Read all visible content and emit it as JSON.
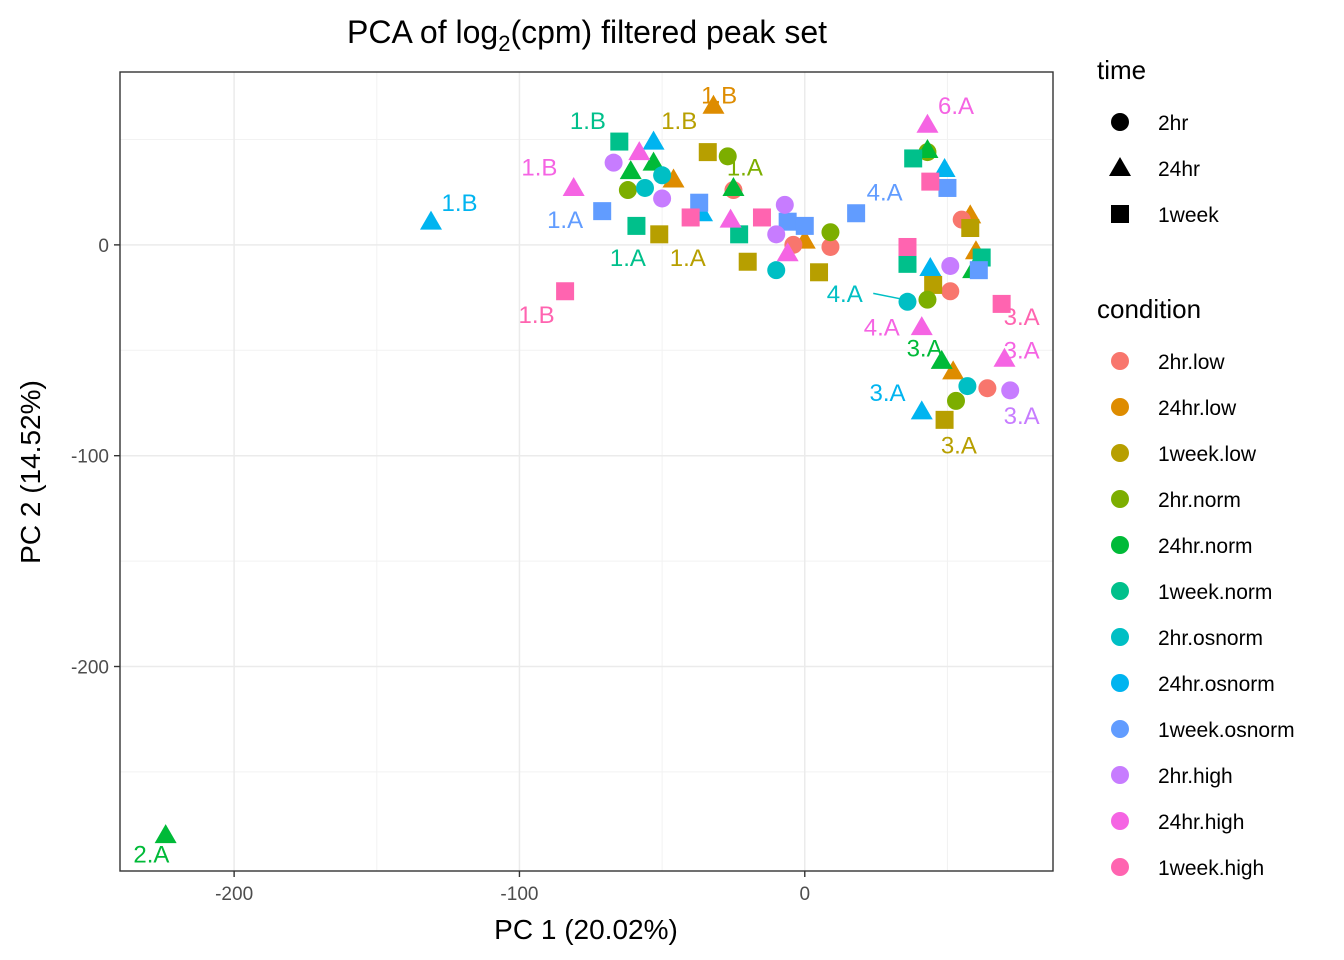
{
  "chart_data": {
    "type": "scatter",
    "title": "PCA of log",
    "title_subscript": "2",
    "title_suffix": "(cpm) filtered peak set",
    "xlabel": "PC 1 (20.02%)",
    "ylabel": "PC 2 (14.52%)",
    "xlim": [
      -240,
      87
    ],
    "ylim": [
      -297,
      82
    ],
    "x_ticks": [
      -200,
      -100,
      0
    ],
    "x_tick_labels": [
      "-200",
      "-100",
      "0"
    ],
    "y_ticks": [
      -200,
      -100,
      0
    ],
    "y_tick_labels": [
      "-200",
      "-100",
      "0"
    ],
    "grid": true,
    "legend_position": "right",
    "time_legend": {
      "title": "time",
      "entries": [
        {
          "label": "2hr",
          "shape": "circle"
        },
        {
          "label": "24hr",
          "shape": "triangle"
        },
        {
          "label": "1week",
          "shape": "square"
        }
      ]
    },
    "condition_legend": {
      "title": "condition",
      "entries": [
        {
          "label": "2hr.low",
          "color": "#F8766D"
        },
        {
          "label": "24hr.low",
          "color": "#DE8C00"
        },
        {
          "label": "1week.low",
          "color": "#B79F00"
        },
        {
          "label": "2hr.norm",
          "color": "#7CAE00"
        },
        {
          "label": "24hr.norm",
          "color": "#00BA38"
        },
        {
          "label": "1week.norm",
          "color": "#00C08B"
        },
        {
          "label": "2hr.osnorm",
          "color": "#00BFC4"
        },
        {
          "label": "24hr.osnorm",
          "color": "#00B4F0"
        },
        {
          "label": "1week.osnorm",
          "color": "#619CFF"
        },
        {
          "label": "2hr.high",
          "color": "#C77CFF"
        },
        {
          "label": "24hr.high",
          "color": "#F564E3"
        },
        {
          "label": "1week.high",
          "color": "#FF64B0"
        }
      ]
    },
    "points": [
      {
        "c": 1,
        "s": 1,
        "x": -32,
        "y": 66
      },
      {
        "c": 1,
        "s": 1,
        "x": -46,
        "y": 31
      },
      {
        "c": 1,
        "s": 1,
        "x": 0,
        "y": 2
      },
      {
        "c": 1,
        "s": 1,
        "x": 58,
        "y": 14
      },
      {
        "c": 1,
        "s": 1,
        "x": 60,
        "y": -3
      },
      {
        "c": 1,
        "s": 1,
        "x": 52,
        "y": -60
      },
      {
        "c": 0,
        "s": 0,
        "x": -25,
        "y": 26
      },
      {
        "c": 0,
        "s": 0,
        "x": 9,
        "y": -1
      },
      {
        "c": 0,
        "s": 0,
        "x": 55,
        "y": 12
      },
      {
        "c": 0,
        "s": 0,
        "x": 51,
        "y": -22
      },
      {
        "c": 0,
        "s": 0,
        "x": 64,
        "y": -68
      },
      {
        "c": 0,
        "s": 0,
        "x": -4,
        "y": 0
      },
      {
        "c": 2,
        "s": 2,
        "x": -34,
        "y": 44
      },
      {
        "c": 2,
        "s": 2,
        "x": -51,
        "y": 5
      },
      {
        "c": 2,
        "s": 2,
        "x": -20,
        "y": -8
      },
      {
        "c": 2,
        "s": 2,
        "x": 5,
        "y": -13
      },
      {
        "c": 2,
        "s": 2,
        "x": 58,
        "y": 8
      },
      {
        "c": 2,
        "s": 2,
        "x": 45,
        "y": -19
      },
      {
        "c": 2,
        "s": 2,
        "x": 49,
        "y": -83
      },
      {
        "c": 3,
        "s": 0,
        "x": -27,
        "y": 42
      },
      {
        "c": 3,
        "s": 0,
        "x": -62,
        "y": 26
      },
      {
        "c": 3,
        "s": 0,
        "x": 9,
        "y": 6
      },
      {
        "c": 3,
        "s": 0,
        "x": 43,
        "y": -26
      },
      {
        "c": 3,
        "s": 0,
        "x": 53,
        "y": -74
      },
      {
        "c": 3,
        "s": 0,
        "x": 43,
        "y": 44
      },
      {
        "c": 4,
        "s": 1,
        "x": -61,
        "y": 35
      },
      {
        "c": 4,
        "s": 1,
        "x": -53,
        "y": 39
      },
      {
        "c": 4,
        "s": 1,
        "x": -25,
        "y": 27
      },
      {
        "c": 4,
        "s": 1,
        "x": 43,
        "y": 45
      },
      {
        "c": 4,
        "s": 1,
        "x": 59,
        "y": -12
      },
      {
        "c": 4,
        "s": 1,
        "x": 48,
        "y": -55
      },
      {
        "c": 4,
        "s": 1,
        "x": -224,
        "y": -280
      },
      {
        "c": 5,
        "s": 2,
        "x": -65,
        "y": 49
      },
      {
        "c": 5,
        "s": 2,
        "x": -59,
        "y": 9
      },
      {
        "c": 5,
        "s": 2,
        "x": -23,
        "y": 5
      },
      {
        "c": 5,
        "s": 2,
        "x": 38,
        "y": 41
      },
      {
        "c": 5,
        "s": 2,
        "x": 36,
        "y": -9
      },
      {
        "c": 5,
        "s": 2,
        "x": 62,
        "y": -6
      },
      {
        "c": 6,
        "s": 0,
        "x": -56,
        "y": 27
      },
      {
        "c": 6,
        "s": 0,
        "x": -50,
        "y": 33
      },
      {
        "c": 6,
        "s": 0,
        "x": -10,
        "y": -12
      },
      {
        "c": 6,
        "s": 0,
        "x": 36,
        "y": -27
      },
      {
        "c": 6,
        "s": 0,
        "x": 57,
        "y": -67
      },
      {
        "c": 7,
        "s": 1,
        "x": -53,
        "y": 49
      },
      {
        "c": 7,
        "s": 1,
        "x": -131,
        "y": 11
      },
      {
        "c": 7,
        "s": 1,
        "x": -36,
        "y": 15
      },
      {
        "c": 7,
        "s": 1,
        "x": 49,
        "y": 36
      },
      {
        "c": 7,
        "s": 1,
        "x": 44,
        "y": -11
      },
      {
        "c": 7,
        "s": 1,
        "x": 41,
        "y": -79
      },
      {
        "c": 8,
        "s": 2,
        "x": -71,
        "y": 16
      },
      {
        "c": 8,
        "s": 2,
        "x": -37,
        "y": 20
      },
      {
        "c": 8,
        "s": 2,
        "x": -6,
        "y": 11
      },
      {
        "c": 8,
        "s": 2,
        "x": 0,
        "y": 9
      },
      {
        "c": 8,
        "s": 2,
        "x": 18,
        "y": 15
      },
      {
        "c": 8,
        "s": 2,
        "x": 50,
        "y": 27
      },
      {
        "c": 8,
        "s": 2,
        "x": 61,
        "y": -12
      },
      {
        "c": 9,
        "s": 0,
        "x": -67,
        "y": 39
      },
      {
        "c": 9,
        "s": 0,
        "x": -50,
        "y": 22
      },
      {
        "c": 9,
        "s": 0,
        "x": -7,
        "y": 19
      },
      {
        "c": 9,
        "s": 0,
        "x": -10,
        "y": 5
      },
      {
        "c": 9,
        "s": 0,
        "x": 51,
        "y": -10
      },
      {
        "c": 9,
        "s": 0,
        "x": 72,
        "y": -69
      },
      {
        "c": 10,
        "s": 1,
        "x": -81,
        "y": 27
      },
      {
        "c": 10,
        "s": 1,
        "x": -58,
        "y": 44
      },
      {
        "c": 10,
        "s": 1,
        "x": -26,
        "y": 12
      },
      {
        "c": 10,
        "s": 1,
        "x": -6,
        "y": -4
      },
      {
        "c": 10,
        "s": 1,
        "x": 41,
        "y": -39
      },
      {
        "c": 10,
        "s": 1,
        "x": 43,
        "y": 57
      },
      {
        "c": 10,
        "s": 1,
        "x": 70,
        "y": -54
      },
      {
        "c": 11,
        "s": 2,
        "x": -84,
        "y": -22
      },
      {
        "c": 11,
        "s": 2,
        "x": -40,
        "y": 13
      },
      {
        "c": 11,
        "s": 2,
        "x": -15,
        "y": 13
      },
      {
        "c": 11,
        "s": 2,
        "x": 36,
        "y": -1
      },
      {
        "c": 11,
        "s": 2,
        "x": 44,
        "y": 30
      },
      {
        "c": 11,
        "s": 2,
        "x": 69,
        "y": -28
      }
    ],
    "labels": [
      {
        "text": "1.B",
        "c": 1,
        "x": -30,
        "y": 70
      },
      {
        "text": "1.B",
        "c": 2,
        "x": -44,
        "y": 58
      },
      {
        "text": "1.B",
        "c": 5,
        "x": -76,
        "y": 58
      },
      {
        "text": "1.B",
        "c": 10,
        "x": -93,
        "y": 36
      },
      {
        "text": "1.B",
        "c": 7,
        "x": -121,
        "y": 19
      },
      {
        "text": "1.B",
        "c": 11,
        "x": -94,
        "y": -34
      },
      {
        "text": "1.A",
        "c": 3,
        "x": -21,
        "y": 36
      },
      {
        "text": "1.A",
        "c": 8,
        "x": -84,
        "y": 11
      },
      {
        "text": "1.A",
        "c": 5,
        "x": -62,
        "y": -7
      },
      {
        "text": "1.A",
        "c": 2,
        "x": -41,
        "y": -7
      },
      {
        "text": "4.A",
        "c": 8,
        "x": 28,
        "y": 24
      },
      {
        "text": "4.A",
        "c": 6,
        "x": 14,
        "y": -24
      },
      {
        "text": "4.A",
        "c": 10,
        "x": 27,
        "y": -40
      },
      {
        "text": "6.A",
        "c": 10,
        "x": 53,
        "y": 65
      },
      {
        "text": "3.A",
        "c": 4,
        "x": 42,
        "y": -50
      },
      {
        "text": "3.A",
        "c": 11,
        "x": 76,
        "y": -35
      },
      {
        "text": "3.A",
        "c": 10,
        "x": 76,
        "y": -51
      },
      {
        "text": "3.A",
        "c": 7,
        "x": 29,
        "y": -71
      },
      {
        "text": "3.A",
        "c": 9,
        "x": 76,
        "y": -82
      },
      {
        "text": "3.A",
        "c": 2,
        "x": 54,
        "y": -96
      },
      {
        "text": "2.A",
        "c": 4,
        "x": -229,
        "y": -290
      }
    ]
  }
}
